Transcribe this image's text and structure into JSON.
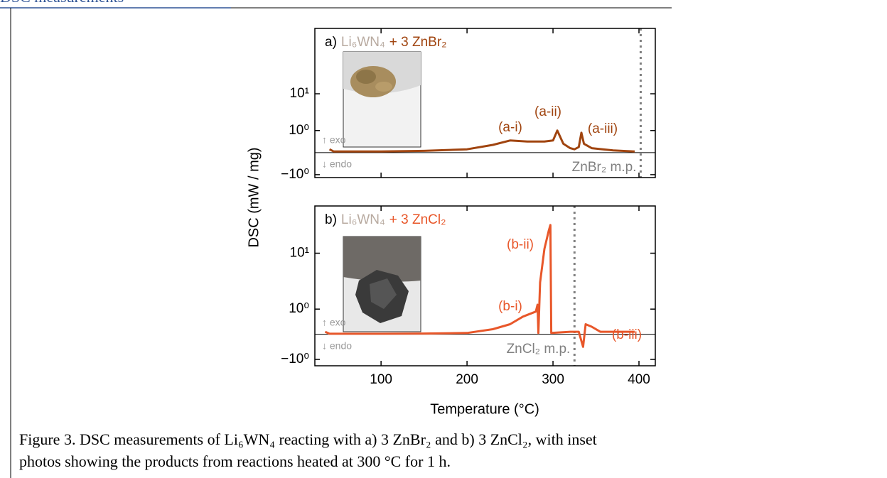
{
  "header": "DSC measurements",
  "caption": [
    "Figure 3. DSC measurements of Li₆WN₄ reacting with a) 3 ZnBr₂ and b) 3 ZnCl₂, with inset",
    "photos showing the products from reactions heated at 300 °C for 1 h."
  ],
  "ylabel": "DSC (mW / mg)",
  "xlabel": "Temperature (°C)",
  "chart_data": [
    {
      "type": "line",
      "panel_label": "a)",
      "reactant": "Li₆WN₄",
      "product": "+ 3 ZnBr₂",
      "x": [
        40,
        45,
        100,
        150,
        200,
        230,
        250,
        270,
        290,
        300,
        305,
        312,
        320,
        325,
        330,
        333,
        336,
        345,
        370,
        395
      ],
      "series": [
        {
          "color": "#a0440f",
          "values": [
            0.15,
            0.05,
            0.05,
            0.08,
            0.15,
            0.35,
            0.55,
            0.5,
            0.5,
            0.55,
            1.0,
            0.4,
            0.2,
            0.15,
            0.25,
            0.9,
            0.4,
            0.2,
            0.1,
            0.05
          ]
        }
      ],
      "annotations": [
        "(a-i)",
        "(a-ii)",
        "(a-iii)"
      ],
      "exo": "↑ exo",
      "endo": "↓ endo",
      "vline": {
        "x": 402,
        "label": "ZnBr₂ m.p."
      },
      "xlim": [
        23,
        419
      ],
      "xticks": [
        100,
        200,
        300,
        400
      ],
      "ylim": [
        -1.2,
        600
      ],
      "yscale": "symlog",
      "yticks": [
        {
          "value": -1,
          "label": "−10⁰"
        },
        {
          "value": 1,
          "label": "10⁰"
        },
        {
          "value": 10,
          "label": "10¹"
        }
      ]
    },
    {
      "type": "line",
      "panel_label": "b)",
      "reactant": "Li₆WN₄",
      "product": "+ 3 ZnCl₂",
      "x": [
        35,
        40,
        100,
        150,
        200,
        230,
        250,
        265,
        280,
        282,
        283,
        285,
        290,
        295,
        297,
        298,
        320,
        330,
        335,
        338,
        345,
        355,
        395
      ],
      "series": [
        {
          "color": "#e8572a",
          "values": [
            0.1,
            0.02,
            0.02,
            0.03,
            0.05,
            0.2,
            0.4,
            0.7,
            0.9,
            1.2,
            0.05,
            3,
            12,
            25,
            32,
            0.05,
            0.1,
            0.1,
            -0.5,
            0.4,
            0.3,
            0.1,
            0.1
          ]
        }
      ],
      "annotations": [
        "(b-i)",
        "(b-ii)",
        "(b-iii)"
      ],
      "exo": "↑ exo",
      "endo": "↓ endo",
      "vline": {
        "x": 325,
        "label": "ZnCl₂ m.p."
      },
      "xlim": [
        23,
        419
      ],
      "xticks": [
        100,
        200,
        300,
        400
      ],
      "ylim": [
        -1.3,
        70
      ],
      "yscale": "symlog",
      "yticks": [
        {
          "value": -1,
          "label": "−10⁰"
        },
        {
          "value": 1,
          "label": "10⁰"
        },
        {
          "value": 10,
          "label": "10¹"
        }
      ]
    }
  ]
}
